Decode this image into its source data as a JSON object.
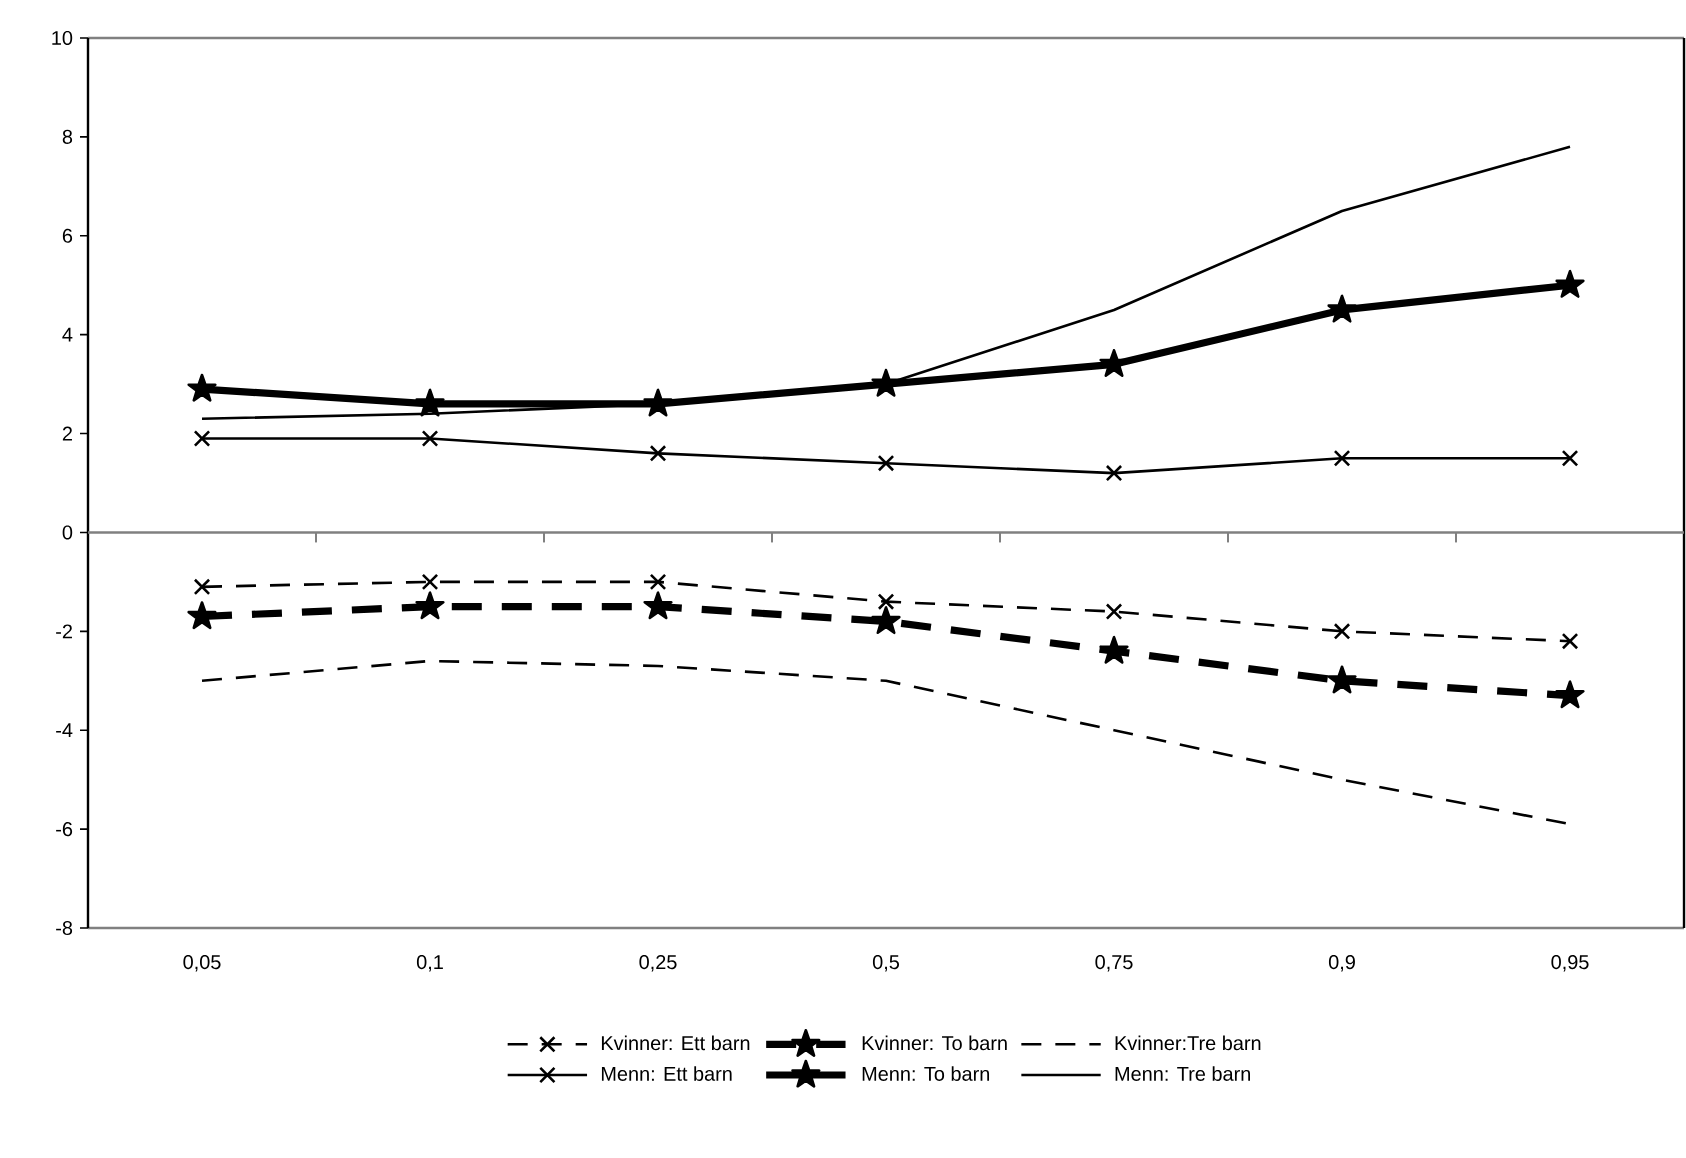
{
  "chart_data": {
    "type": "line",
    "categories": [
      "0,05",
      "0,1",
      "0,25",
      "0,5",
      "0,75",
      "0,9",
      "0,95"
    ],
    "ylim": [
      -8,
      10
    ],
    "yticks": [
      -8,
      -6,
      -4,
      -2,
      0,
      2,
      4,
      6,
      8,
      10
    ],
    "legend": "bottom",
    "series": [
      {
        "name": "Kvinner: Ett barn",
        "color": "#000000",
        "line_style": "dashed",
        "marker": "cross",
        "values": [
          -1.1,
          -1.0,
          -1.0,
          -1.4,
          -1.6,
          -2.0,
          -2.2
        ]
      },
      {
        "name": "Kvinner: To barn",
        "color": "#000000",
        "line_style": "dashed",
        "marker": "star",
        "values": [
          -1.7,
          -1.5,
          -1.5,
          -1.8,
          -2.4,
          -3.0,
          -3.3
        ]
      },
      {
        "name": "Kvinner:Tre barn",
        "color": "#000000",
        "line_style": "dashed",
        "marker": "none",
        "values": [
          -3.0,
          -2.6,
          -2.7,
          -3.0,
          -4.0,
          -5.0,
          -5.9
        ]
      },
      {
        "name": "Menn: Ett barn",
        "color": "#000000",
        "line_style": "solid",
        "marker": "cross",
        "values": [
          1.9,
          1.9,
          1.6,
          1.4,
          1.2,
          1.5,
          1.5
        ]
      },
      {
        "name": "Menn: To barn",
        "color": "#000000",
        "line_style": "solid",
        "marker": "star",
        "values": [
          2.9,
          2.6,
          2.6,
          3.0,
          3.4,
          4.5,
          5.0
        ]
      },
      {
        "name": "Menn: Tre barn",
        "color": "#000000",
        "line_style": "solid",
        "marker": "none",
        "values": [
          2.3,
          2.4,
          2.6,
          3.0,
          4.5,
          6.5,
          7.8
        ]
      }
    ]
  }
}
